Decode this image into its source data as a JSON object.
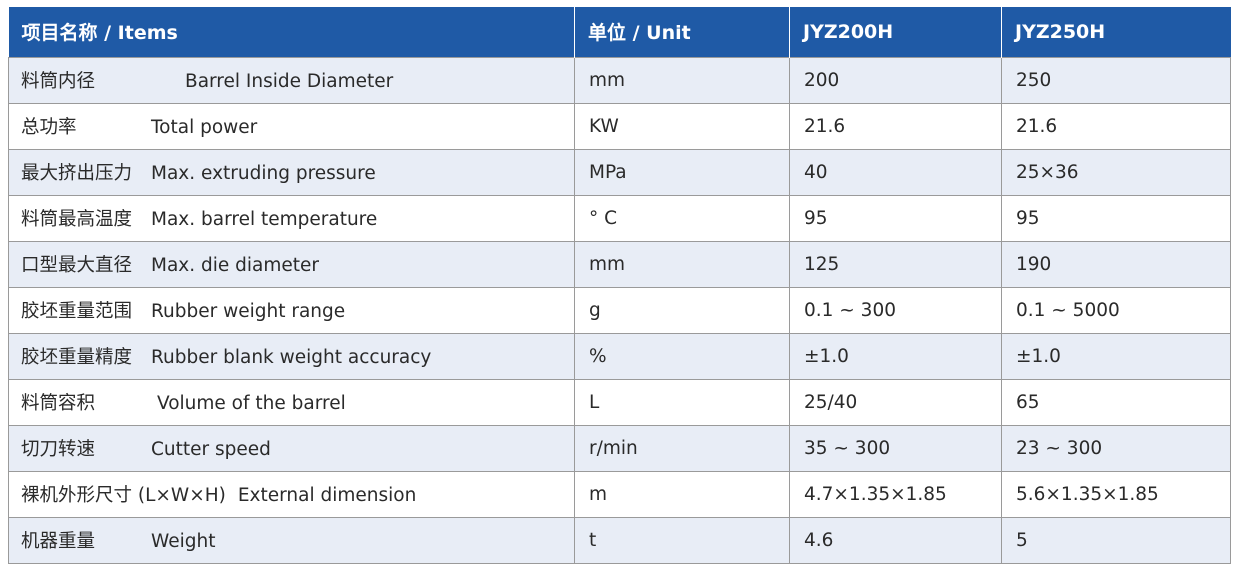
{
  "header": {
    "items": "项目名称 / Items",
    "unit": "单位 / Unit",
    "model_a": "JYZ200H",
    "model_b": "JYZ250H"
  },
  "rows": [
    {
      "cn": "料筒内径",
      "en": "Barrel Inside Diameter",
      "unit": "mm",
      "a": "200",
      "b": "250"
    },
    {
      "cn": "总功率",
      "en": "Total power",
      "unit": "KW",
      "a": "21.6",
      "b": "21.6"
    },
    {
      "cn": "最大挤出压力",
      "en": "Max. extruding pressure",
      "unit": "MPa",
      "a": "40",
      "b": "25×36"
    },
    {
      "cn": "料筒最高温度",
      "en": "Max. barrel temperature",
      "unit": "° C",
      "a": "95",
      "b": "95"
    },
    {
      "cn": "口型最大直径",
      "en": "Max. die diameter",
      "unit": "mm",
      "a": "125",
      "b": "190"
    },
    {
      "cn": "胶坯重量范围",
      "en": "Rubber weight range",
      "unit": "g",
      "a": "0.1 ~ 300",
      "b": "0.1 ~ 5000"
    },
    {
      "cn": "胶坯重量精度",
      "en": "Rubber blank weight accuracy",
      "unit": "%",
      "a": "±1.0",
      "b": "±1.0"
    },
    {
      "cn": "料筒容积",
      "en": "Volume of the barrel",
      "unit": "L",
      "a": "25/40",
      "b": "65"
    },
    {
      "cn": "切刀转速",
      "en": "Cutter speed",
      "unit": "r/min",
      "a": "35 ~ 300",
      "b": "23 ~ 300"
    },
    {
      "cn": "裸机外形尺寸 (L×W×H)",
      "en": "External dimension",
      "unit": "m",
      "a": "4.7×1.35×1.85",
      "b": "5.6×1.35×1.85"
    },
    {
      "cn": "机器重量",
      "en": "Weight",
      "unit": "t",
      "a": "4.6",
      "b": "5"
    }
  ],
  "colors": {
    "header_bg": "#1f5aa6",
    "header_text": "#ffffff",
    "stripe": "#e8edf6",
    "border": "#9a9a9a"
  }
}
